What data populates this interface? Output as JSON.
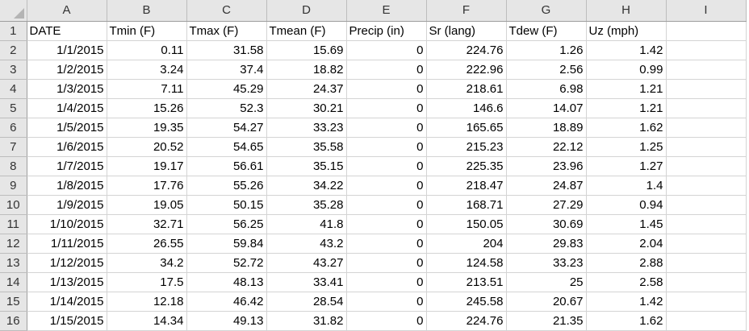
{
  "columns": [
    "A",
    "B",
    "C",
    "D",
    "E",
    "F",
    "G",
    "H",
    "I"
  ],
  "header_row": {
    "number": "1",
    "cells": [
      "DATE",
      "Tmin (F)",
      "Tmax (F)",
      "Tmean (F)",
      "Precip (in)",
      "Sr (lang)",
      "Tdew (F)",
      "Uz (mph)",
      ""
    ]
  },
  "rows": [
    {
      "number": "2",
      "cells": [
        "1/1/2015",
        "0.11",
        "31.58",
        "15.69",
        "0",
        "224.76",
        "1.26",
        "1.42",
        ""
      ]
    },
    {
      "number": "3",
      "cells": [
        "1/2/2015",
        "3.24",
        "37.4",
        "18.82",
        "0",
        "222.96",
        "2.56",
        "0.99",
        ""
      ]
    },
    {
      "number": "4",
      "cells": [
        "1/3/2015",
        "7.11",
        "45.29",
        "24.37",
        "0",
        "218.61",
        "6.98",
        "1.21",
        ""
      ]
    },
    {
      "number": "5",
      "cells": [
        "1/4/2015",
        "15.26",
        "52.3",
        "30.21",
        "0",
        "146.6",
        "14.07",
        "1.21",
        ""
      ]
    },
    {
      "number": "6",
      "cells": [
        "1/5/2015",
        "19.35",
        "54.27",
        "33.23",
        "0",
        "165.65",
        "18.89",
        "1.62",
        ""
      ]
    },
    {
      "number": "7",
      "cells": [
        "1/6/2015",
        "20.52",
        "54.65",
        "35.58",
        "0",
        "215.23",
        "22.12",
        "1.25",
        ""
      ]
    },
    {
      "number": "8",
      "cells": [
        "1/7/2015",
        "19.17",
        "56.61",
        "35.15",
        "0",
        "225.35",
        "23.96",
        "1.27",
        ""
      ]
    },
    {
      "number": "9",
      "cells": [
        "1/8/2015",
        "17.76",
        "55.26",
        "34.22",
        "0",
        "218.47",
        "24.87",
        "1.4",
        ""
      ]
    },
    {
      "number": "10",
      "cells": [
        "1/9/2015",
        "19.05",
        "50.15",
        "35.28",
        "0",
        "168.71",
        "27.29",
        "0.94",
        ""
      ]
    },
    {
      "number": "11",
      "cells": [
        "1/10/2015",
        "32.71",
        "56.25",
        "41.8",
        "0",
        "150.05",
        "30.69",
        "1.45",
        ""
      ]
    },
    {
      "number": "12",
      "cells": [
        "1/11/2015",
        "26.55",
        "59.84",
        "43.2",
        "0",
        "204",
        "29.83",
        "2.04",
        ""
      ]
    },
    {
      "number": "13",
      "cells": [
        "1/12/2015",
        "34.2",
        "52.72",
        "43.27",
        "0",
        "124.58",
        "33.23",
        "2.88",
        ""
      ]
    },
    {
      "number": "14",
      "cells": [
        "1/13/2015",
        "17.5",
        "48.13",
        "33.41",
        "0",
        "213.51",
        "25",
        "2.58",
        ""
      ]
    },
    {
      "number": "15",
      "cells": [
        "1/14/2015",
        "12.18",
        "46.42",
        "28.54",
        "0",
        "245.58",
        "20.67",
        "1.42",
        ""
      ]
    },
    {
      "number": "16",
      "cells": [
        "1/15/2015",
        "14.34",
        "49.13",
        "31.82",
        "0",
        "224.76",
        "21.35",
        "1.62",
        ""
      ]
    }
  ]
}
